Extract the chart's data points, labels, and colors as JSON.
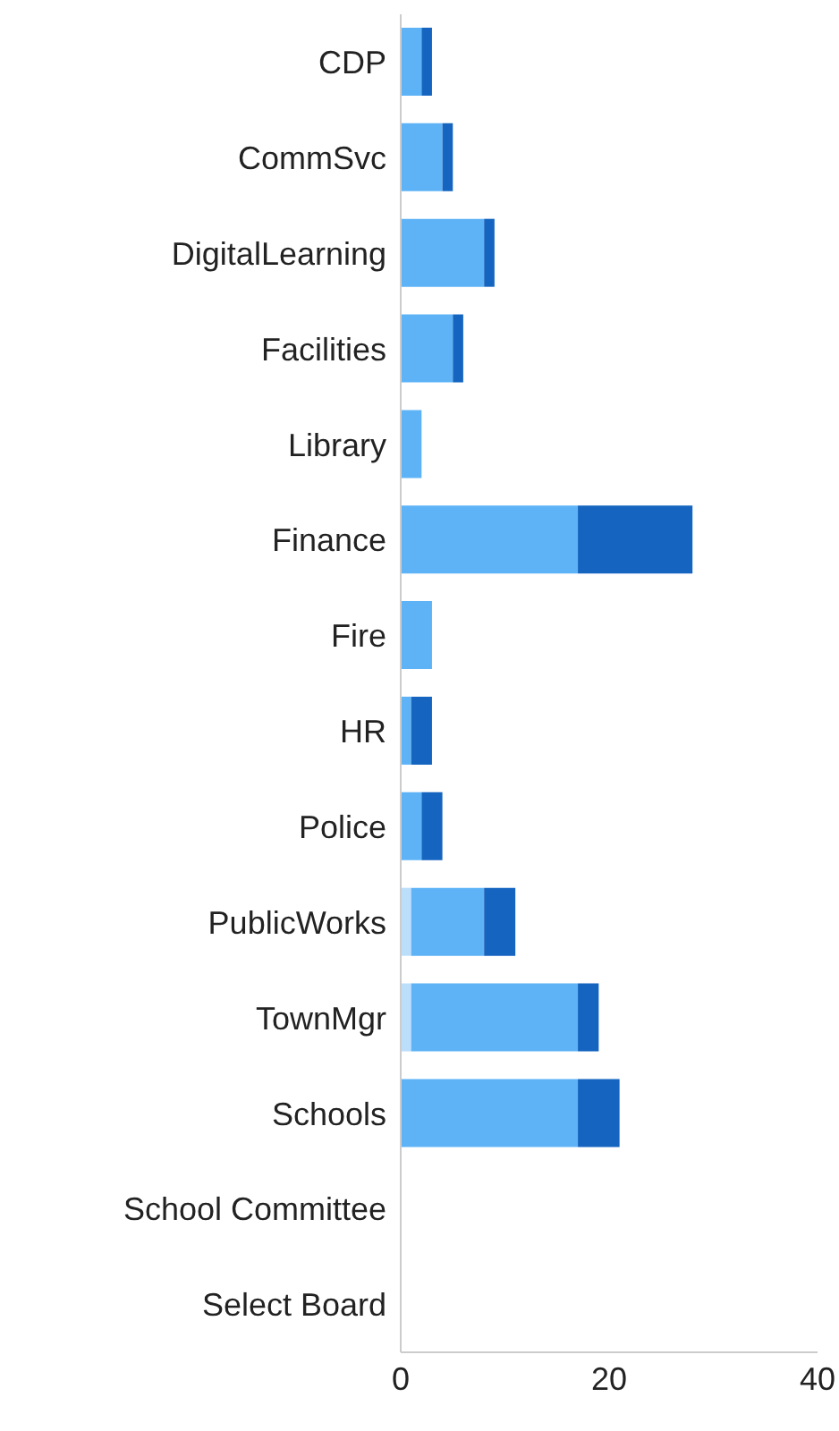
{
  "chart_data": {
    "type": "bar",
    "orientation": "horizontal",
    "stacked": true,
    "categories": [
      "CDP",
      "CommSvc",
      "DigitalLearning",
      "Facilities",
      "Library",
      "Finance",
      "Fire",
      "HR",
      "Police",
      "PublicWorks",
      "TownMgr",
      "Schools",
      "School Committee",
      "Select Board"
    ],
    "series": [
      {
        "color": "#bbdefb",
        "values": [
          0,
          0,
          0,
          0,
          0,
          0,
          0,
          0,
          0,
          1,
          1,
          0,
          0,
          0
        ]
      },
      {
        "color": "#5eb3f6",
        "values": [
          2,
          4,
          8,
          5,
          2,
          17,
          3,
          1,
          2,
          7,
          16,
          17,
          0,
          0
        ]
      },
      {
        "color": "#1565c0",
        "values": [
          1,
          1,
          1,
          1,
          0,
          11,
          0,
          2,
          2,
          3,
          2,
          4,
          0,
          0
        ]
      }
    ],
    "xlim": [
      0,
      40
    ],
    "xticks": [
      0,
      20,
      40
    ],
    "grid": false,
    "legend": false
  }
}
